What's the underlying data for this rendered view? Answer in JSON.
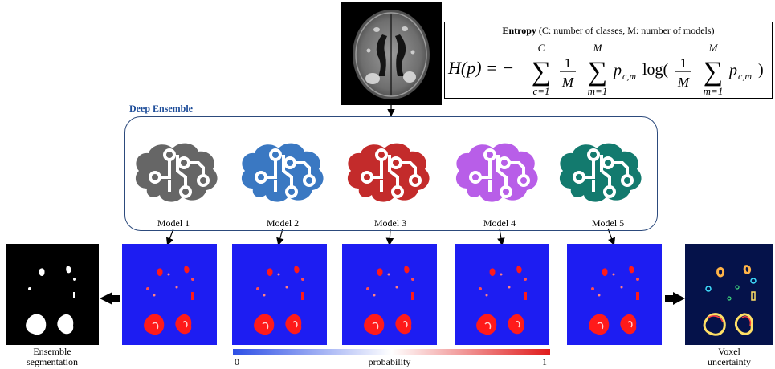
{
  "formula": {
    "title_bold": "Entropy",
    "title_rest": " (C: number of classes, M: number of models)",
    "lhs": "H(p) = −",
    "sum_upper_c": "C",
    "sum_lower_c": "c=1",
    "sum_upper_m": "M",
    "sum_lower_m": "m=1",
    "frac_num": "1",
    "frac_den": "M",
    "term_p": "p",
    "term_sub": "c,m",
    "log": "log(",
    "close": ")"
  },
  "ensemble": {
    "title": "Deep Ensemble",
    "border_color": "#2c4a7c",
    "models": [
      {
        "label": "Model 1",
        "color": "#666666"
      },
      {
        "label": "Model 2",
        "color": "#3a78c2"
      },
      {
        "label": "Model 3",
        "color": "#c32b2b"
      },
      {
        "label": "Model 4",
        "color": "#b85ee8"
      },
      {
        "label": "Model 5",
        "color": "#137a6e"
      }
    ]
  },
  "outputs": {
    "ensemble_caption_line1": "Ensemble",
    "ensemble_caption_line2": "segmentation",
    "uncertainty_caption_line1": "Voxel",
    "uncertainty_caption_line2": "uncertainty"
  },
  "colorbar": {
    "label": "probability",
    "min": "0",
    "max": "1",
    "color_low": "#2d4fe6",
    "color_mid": "#ffffff",
    "color_high": "#e01b1b"
  }
}
